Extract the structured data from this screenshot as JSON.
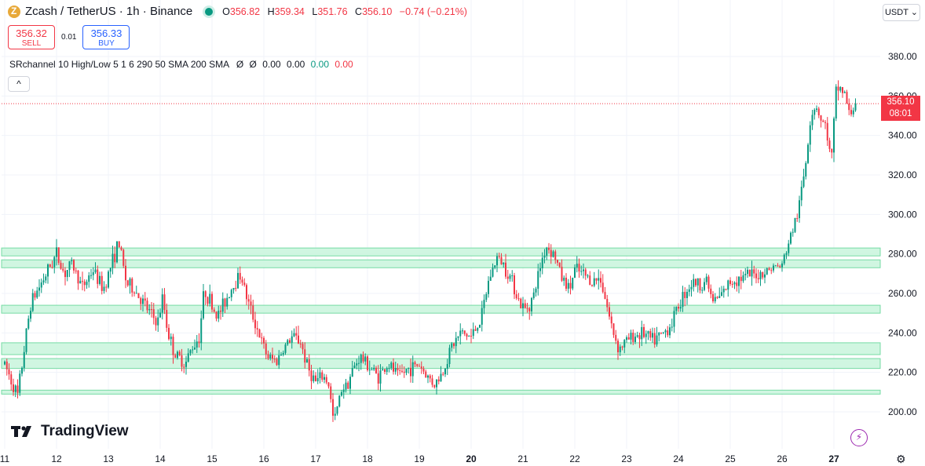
{
  "header": {
    "symbol": "Zcash / TetherUS · 1h · Binance",
    "ohlc": {
      "o_label": "O",
      "o": "356.82",
      "h_label": "H",
      "h": "359.34",
      "l_label": "L",
      "l": "351.76",
      "c_label": "C",
      "c": "356.10",
      "change": "−0.74 (−0.21%)"
    }
  },
  "trade": {
    "sell_price": "356.32",
    "sell_label": "SELL",
    "spread": "0.01",
    "buy_price": "356.33",
    "buy_label": "BUY"
  },
  "indicator": {
    "name": "SRchannel 10 High/Low 5 1 6 290 50 SMA 200 SMA",
    "sym1": "Ø",
    "sym2": "Ø",
    "v1": "0.00",
    "v2": "0.00",
    "v3": "0.00",
    "v4": "0.00"
  },
  "currency_label": "USDT ⌄",
  "collapse_label": "^",
  "last_price": {
    "price": "356.10",
    "countdown": "08:01"
  },
  "logo_text": "TradingView",
  "colors": {
    "up": "#089981",
    "down": "#f23645",
    "zone_fill": "#c8f5dc",
    "zone_line": "#76dba4",
    "grid": "#f0f3fa"
  },
  "chart_data": {
    "type": "candlestick",
    "x_axis": {
      "tick_labels": [
        "11",
        "12",
        "13",
        "14",
        "15",
        "16",
        "17",
        "18",
        "19",
        "20",
        "21",
        "22",
        "23",
        "24",
        "25",
        "26",
        "27"
      ]
    },
    "y_axis": {
      "tick_labels": [
        "200.00",
        "220.00",
        "240.00",
        "260.00",
        "280.00",
        "300.00",
        "320.00",
        "340.00",
        "360.00",
        "380.00"
      ],
      "ylim": [
        183,
        392
      ]
    },
    "sr_zones": [
      [
        209,
        211
      ],
      [
        222,
        227
      ],
      [
        229,
        235
      ],
      [
        250,
        254
      ],
      [
        273,
        277
      ],
      [
        279,
        283
      ]
    ],
    "last_price_line": 356.1,
    "anchors": [
      [
        11.0,
        224
      ],
      [
        11.25,
        208
      ],
      [
        11.5,
        255
      ],
      [
        11.8,
        270
      ],
      [
        12.0,
        280
      ],
      [
        12.15,
        270
      ],
      [
        12.3,
        275
      ],
      [
        12.5,
        263
      ],
      [
        12.7,
        272
      ],
      [
        12.9,
        262
      ],
      [
        13.1,
        278
      ],
      [
        13.2,
        286
      ],
      [
        13.35,
        265
      ],
      [
        13.5,
        262
      ],
      [
        13.75,
        252
      ],
      [
        13.95,
        245
      ],
      [
        14.05,
        258
      ],
      [
        14.15,
        240
      ],
      [
        14.3,
        228
      ],
      [
        14.5,
        225
      ],
      [
        14.6,
        232
      ],
      [
        14.75,
        238
      ],
      [
        14.85,
        262
      ],
      [
        14.95,
        257
      ],
      [
        15.1,
        248
      ],
      [
        15.25,
        256
      ],
      [
        15.4,
        264
      ],
      [
        15.55,
        270
      ],
      [
        15.7,
        255
      ],
      [
        15.85,
        244
      ],
      [
        16.0,
        232
      ],
      [
        16.1,
        227
      ],
      [
        16.25,
        226
      ],
      [
        16.4,
        233
      ],
      [
        16.55,
        238
      ],
      [
        16.7,
        236
      ],
      [
        16.85,
        222
      ],
      [
        17.0,
        215
      ],
      [
        17.15,
        218
      ],
      [
        17.25,
        214
      ],
      [
        17.35,
        194
      ],
      [
        17.5,
        212
      ],
      [
        17.6,
        214
      ],
      [
        17.75,
        223
      ],
      [
        17.85,
        228
      ],
      [
        18.0,
        224
      ],
      [
        18.2,
        218
      ],
      [
        18.4,
        224
      ],
      [
        18.6,
        218
      ],
      [
        18.8,
        222
      ],
      [
        19.0,
        224
      ],
      [
        19.15,
        218
      ],
      [
        19.3,
        214
      ],
      [
        19.45,
        220
      ],
      [
        19.6,
        232
      ],
      [
        19.8,
        240
      ],
      [
        20.0,
        238
      ],
      [
        20.2,
        248
      ],
      [
        20.35,
        268
      ],
      [
        20.5,
        278
      ],
      [
        20.6,
        276
      ],
      [
        20.8,
        266
      ],
      [
        20.95,
        254
      ],
      [
        21.05,
        252
      ],
      [
        21.2,
        258
      ],
      [
        21.35,
        276
      ],
      [
        21.45,
        284
      ],
      [
        21.6,
        280
      ],
      [
        21.75,
        268
      ],
      [
        21.9,
        262
      ],
      [
        22.0,
        272
      ],
      [
        22.15,
        270
      ],
      [
        22.35,
        266
      ],
      [
        22.5,
        268
      ],
      [
        22.7,
        244
      ],
      [
        22.85,
        232
      ],
      [
        23.0,
        236
      ],
      [
        23.1,
        238
      ],
      [
        23.3,
        240
      ],
      [
        23.5,
        236
      ],
      [
        23.65,
        238
      ],
      [
        23.85,
        244
      ],
      [
        24.0,
        254
      ],
      [
        24.15,
        262
      ],
      [
        24.3,
        266
      ],
      [
        24.4,
        264
      ],
      [
        24.55,
        267
      ],
      [
        24.65,
        256
      ],
      [
        24.8,
        258
      ],
      [
        25.0,
        266
      ],
      [
        25.2,
        268
      ],
      [
        25.4,
        269
      ],
      [
        25.6,
        270
      ],
      [
        25.8,
        273
      ],
      [
        26.0,
        274
      ],
      [
        26.15,
        288
      ],
      [
        26.3,
        300
      ],
      [
        26.45,
        325
      ],
      [
        26.55,
        350
      ],
      [
        26.65,
        356
      ],
      [
        26.75,
        348
      ],
      [
        26.85,
        344
      ],
      [
        26.95,
        326
      ],
      [
        27.05,
        365
      ],
      [
        27.2,
        362
      ],
      [
        27.3,
        350
      ],
      [
        27.42,
        356.1
      ]
    ]
  }
}
